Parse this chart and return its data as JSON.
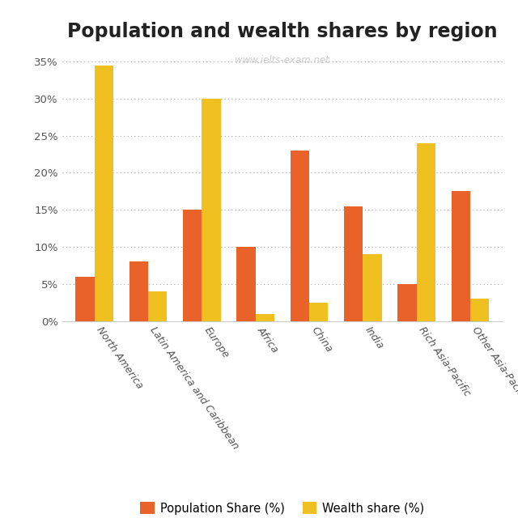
{
  "title": "Population and wealth shares by region",
  "watermark": "www.ielts-exam.net",
  "categories": [
    "North America",
    "Latin America and Caribbean",
    "Europe",
    "Africa",
    "China",
    "India",
    "Rich Asia-Pacific",
    "Other Asia-Pacific"
  ],
  "population_share": [
    6,
    8,
    15,
    10,
    23,
    15.5,
    5,
    17.5
  ],
  "wealth_share": [
    34.5,
    4,
    30,
    1,
    2.5,
    9,
    24,
    3
  ],
  "population_color": "#E8622A",
  "wealth_color": "#F0C020",
  "bar_width": 0.35,
  "ylim": [
    0,
    37
  ],
  "yticks": [
    0,
    5,
    10,
    15,
    20,
    25,
    30,
    35
  ],
  "yticklabels": [
    "0%",
    "5%",
    "10%",
    "15%",
    "20%",
    "25%",
    "30%",
    "35%"
  ],
  "legend_labels": [
    "Population Share (%)",
    "Wealth share (%)"
  ],
  "background_color": "#ffffff",
  "title_fontsize": 17,
  "tick_fontsize": 9.5,
  "legend_fontsize": 10.5,
  "xtick_fontsize": 9
}
